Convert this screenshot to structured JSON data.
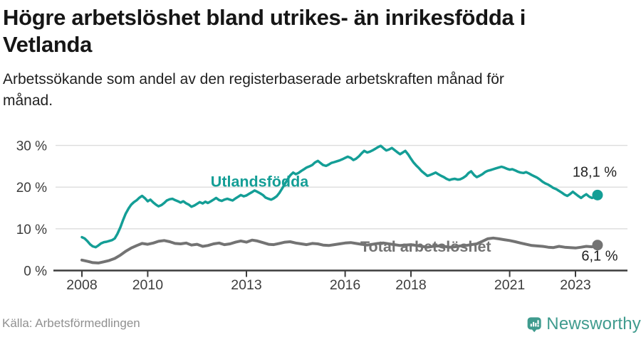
{
  "header": {
    "title": "Högre arbetslöshet bland utrikes- än inrikesfödda i\nVetlanda",
    "subtitle": "Arbetssökande som andel av den registerbaserade arbetskraften månad för\nmånad."
  },
  "footer": {
    "source": "Källa: Arbetsförmedlingen",
    "brand_name": "Newsworthy",
    "brand_color": "#3f9b8e"
  },
  "colors": {
    "teal_series": "#149e96",
    "gray_series": "#737373",
    "gridline": "#dcdcdc",
    "axis": "#3d3d3d",
    "axis_text": "#3d3d3d",
    "end_label_text": "#1f1f1f"
  },
  "chart_data": {
    "type": "line",
    "title": "Högre arbetslöshet bland utrikes- än inrikesfödda i Vetlanda",
    "subtitle": "Arbetssökande som andel av den registerbaserade arbetskraften månad för månad.",
    "xlabel": "",
    "ylabel": "",
    "x_ticks": [
      2008,
      2010,
      2013,
      2016,
      2018,
      2021,
      2023
    ],
    "y_ticks": [
      0,
      10,
      20,
      30
    ],
    "y_tick_suffix": " %",
    "xlim": [
      2007.15,
      2024.55
    ],
    "ylim": [
      0,
      32
    ],
    "grid": "horizontal",
    "legend_position": "inline-labels",
    "series": [
      {
        "id": "utlandsfodda",
        "name": "Utlandsfödda",
        "color": "#149e96",
        "line_width": 3.5,
        "end_label": "18,1 %",
        "end_value": 18.1,
        "label_anchor": {
          "year": 2013.4,
          "value": 21.3
        },
        "end_label_offset": [
          -4,
          -26
        ],
        "points": [
          [
            2008.0,
            8.0
          ],
          [
            2008.08,
            7.7
          ],
          [
            2008.17,
            7.0
          ],
          [
            2008.25,
            6.3
          ],
          [
            2008.33,
            5.8
          ],
          [
            2008.42,
            5.6
          ],
          [
            2008.5,
            6.0
          ],
          [
            2008.58,
            6.5
          ],
          [
            2008.67,
            6.8
          ],
          [
            2008.75,
            6.9
          ],
          [
            2008.83,
            7.1
          ],
          [
            2008.92,
            7.3
          ],
          [
            2009.0,
            7.7
          ],
          [
            2009.08,
            8.8
          ],
          [
            2009.17,
            10.4
          ],
          [
            2009.25,
            12.1
          ],
          [
            2009.33,
            13.6
          ],
          [
            2009.42,
            14.9
          ],
          [
            2009.5,
            15.8
          ],
          [
            2009.58,
            16.4
          ],
          [
            2009.67,
            16.9
          ],
          [
            2009.75,
            17.5
          ],
          [
            2009.83,
            17.9
          ],
          [
            2009.92,
            17.3
          ],
          [
            2010.0,
            16.6
          ],
          [
            2010.08,
            17.0
          ],
          [
            2010.17,
            16.3
          ],
          [
            2010.25,
            15.8
          ],
          [
            2010.33,
            15.4
          ],
          [
            2010.42,
            15.7
          ],
          [
            2010.5,
            16.2
          ],
          [
            2010.58,
            16.8
          ],
          [
            2010.67,
            17.1
          ],
          [
            2010.75,
            17.2
          ],
          [
            2010.83,
            16.9
          ],
          [
            2010.92,
            16.6
          ],
          [
            2011.0,
            16.3
          ],
          [
            2011.08,
            16.6
          ],
          [
            2011.17,
            16.1
          ],
          [
            2011.25,
            15.8
          ],
          [
            2011.33,
            15.3
          ],
          [
            2011.42,
            15.6
          ],
          [
            2011.5,
            16.0
          ],
          [
            2011.58,
            16.4
          ],
          [
            2011.67,
            16.1
          ],
          [
            2011.75,
            16.5
          ],
          [
            2011.83,
            16.2
          ],
          [
            2011.92,
            16.6
          ],
          [
            2012.0,
            17.0
          ],
          [
            2012.08,
            17.4
          ],
          [
            2012.17,
            16.9
          ],
          [
            2012.25,
            16.7
          ],
          [
            2012.33,
            17.0
          ],
          [
            2012.42,
            17.2
          ],
          [
            2012.5,
            17.0
          ],
          [
            2012.58,
            16.8
          ],
          [
            2012.67,
            17.3
          ],
          [
            2012.75,
            17.7
          ],
          [
            2012.83,
            18.1
          ],
          [
            2012.92,
            17.8
          ],
          [
            2013.0,
            18.0
          ],
          [
            2013.08,
            18.4
          ],
          [
            2013.17,
            18.8
          ],
          [
            2013.25,
            19.2
          ],
          [
            2013.33,
            18.9
          ],
          [
            2013.42,
            18.5
          ],
          [
            2013.5,
            18.1
          ],
          [
            2013.58,
            17.5
          ],
          [
            2013.67,
            17.2
          ],
          [
            2013.75,
            17.0
          ],
          [
            2013.83,
            17.3
          ],
          [
            2013.92,
            17.8
          ],
          [
            2014.0,
            18.6
          ],
          [
            2014.08,
            19.6
          ],
          [
            2014.17,
            20.8
          ],
          [
            2014.25,
            21.9
          ],
          [
            2014.33,
            22.8
          ],
          [
            2014.42,
            23.5
          ],
          [
            2014.5,
            23.1
          ],
          [
            2014.58,
            23.4
          ],
          [
            2014.67,
            23.9
          ],
          [
            2014.75,
            24.3
          ],
          [
            2014.83,
            24.7
          ],
          [
            2014.92,
            25.0
          ],
          [
            2015.0,
            25.3
          ],
          [
            2015.08,
            25.9
          ],
          [
            2015.17,
            26.3
          ],
          [
            2015.25,
            25.8
          ],
          [
            2015.33,
            25.3
          ],
          [
            2015.42,
            25.1
          ],
          [
            2015.5,
            25.4
          ],
          [
            2015.58,
            25.8
          ],
          [
            2015.67,
            26.0
          ],
          [
            2015.75,
            26.2
          ],
          [
            2015.83,
            26.4
          ],
          [
            2015.92,
            26.7
          ],
          [
            2016.0,
            27.0
          ],
          [
            2016.08,
            27.3
          ],
          [
            2016.17,
            27.0
          ],
          [
            2016.25,
            26.5
          ],
          [
            2016.33,
            26.8
          ],
          [
            2016.42,
            27.4
          ],
          [
            2016.5,
            28.1
          ],
          [
            2016.58,
            28.7
          ],
          [
            2016.67,
            28.3
          ],
          [
            2016.75,
            28.5
          ],
          [
            2016.83,
            28.8
          ],
          [
            2016.92,
            29.2
          ],
          [
            2017.0,
            29.6
          ],
          [
            2017.08,
            29.9
          ],
          [
            2017.17,
            29.3
          ],
          [
            2017.25,
            28.8
          ],
          [
            2017.33,
            29.0
          ],
          [
            2017.42,
            29.4
          ],
          [
            2017.5,
            28.9
          ],
          [
            2017.58,
            28.4
          ],
          [
            2017.67,
            27.9
          ],
          [
            2017.75,
            28.3
          ],
          [
            2017.83,
            28.7
          ],
          [
            2017.92,
            27.8
          ],
          [
            2018.0,
            26.8
          ],
          [
            2018.08,
            25.9
          ],
          [
            2018.17,
            25.1
          ],
          [
            2018.25,
            24.5
          ],
          [
            2018.33,
            23.8
          ],
          [
            2018.42,
            23.2
          ],
          [
            2018.5,
            22.7
          ],
          [
            2018.58,
            22.9
          ],
          [
            2018.67,
            23.2
          ],
          [
            2018.75,
            23.5
          ],
          [
            2018.83,
            23.1
          ],
          [
            2018.92,
            22.7
          ],
          [
            2019.0,
            22.4
          ],
          [
            2019.08,
            22.0
          ],
          [
            2019.17,
            21.7
          ],
          [
            2019.25,
            21.9
          ],
          [
            2019.33,
            22.0
          ],
          [
            2019.42,
            21.8
          ],
          [
            2019.5,
            21.9
          ],
          [
            2019.58,
            22.2
          ],
          [
            2019.67,
            22.7
          ],
          [
            2019.75,
            23.4
          ],
          [
            2019.83,
            23.8
          ],
          [
            2019.92,
            22.9
          ],
          [
            2020.0,
            22.4
          ],
          [
            2020.08,
            22.7
          ],
          [
            2020.17,
            23.1
          ],
          [
            2020.25,
            23.6
          ],
          [
            2020.33,
            23.9
          ],
          [
            2020.42,
            24.1
          ],
          [
            2020.5,
            24.3
          ],
          [
            2020.58,
            24.5
          ],
          [
            2020.67,
            24.7
          ],
          [
            2020.75,
            24.9
          ],
          [
            2020.83,
            24.7
          ],
          [
            2020.92,
            24.4
          ],
          [
            2021.0,
            24.2
          ],
          [
            2021.08,
            24.3
          ],
          [
            2021.17,
            24.0
          ],
          [
            2021.25,
            23.7
          ],
          [
            2021.33,
            23.5
          ],
          [
            2021.42,
            23.4
          ],
          [
            2021.5,
            23.6
          ],
          [
            2021.58,
            23.3
          ],
          [
            2021.67,
            22.9
          ],
          [
            2021.75,
            22.6
          ],
          [
            2021.83,
            22.3
          ],
          [
            2021.92,
            21.8
          ],
          [
            2022.0,
            21.3
          ],
          [
            2022.08,
            20.9
          ],
          [
            2022.17,
            20.6
          ],
          [
            2022.25,
            20.2
          ],
          [
            2022.33,
            19.8
          ],
          [
            2022.42,
            19.5
          ],
          [
            2022.5,
            19.1
          ],
          [
            2022.58,
            18.7
          ],
          [
            2022.67,
            18.2
          ],
          [
            2022.75,
            17.9
          ],
          [
            2022.83,
            18.3
          ],
          [
            2022.92,
            18.9
          ],
          [
            2023.0,
            18.4
          ],
          [
            2023.08,
            17.9
          ],
          [
            2023.17,
            17.4
          ],
          [
            2023.25,
            17.9
          ],
          [
            2023.33,
            18.3
          ],
          [
            2023.42,
            17.7
          ],
          [
            2023.5,
            17.4
          ],
          [
            2023.58,
            17.6
          ],
          [
            2023.67,
            18.1
          ]
        ]
      },
      {
        "id": "total",
        "name": "Total arbetslöshet",
        "color": "#737373",
        "line_width": 4,
        "end_label": "6,1 %",
        "end_value": 6.1,
        "label_anchor": {
          "year": 2018.45,
          "value": 5.7
        },
        "end_label_offset": [
          3,
          22
        ],
        "points": [
          [
            2008.0,
            2.5
          ],
          [
            2008.17,
            2.2
          ],
          [
            2008.33,
            1.9
          ],
          [
            2008.5,
            1.8
          ],
          [
            2008.67,
            2.1
          ],
          [
            2008.83,
            2.4
          ],
          [
            2009.0,
            2.9
          ],
          [
            2009.17,
            3.7
          ],
          [
            2009.33,
            4.6
          ],
          [
            2009.5,
            5.4
          ],
          [
            2009.67,
            6.0
          ],
          [
            2009.83,
            6.5
          ],
          [
            2010.0,
            6.3
          ],
          [
            2010.17,
            6.6
          ],
          [
            2010.33,
            7.0
          ],
          [
            2010.5,
            7.2
          ],
          [
            2010.67,
            6.9
          ],
          [
            2010.83,
            6.5
          ],
          [
            2011.0,
            6.4
          ],
          [
            2011.17,
            6.6
          ],
          [
            2011.33,
            6.1
          ],
          [
            2011.5,
            6.3
          ],
          [
            2011.67,
            5.8
          ],
          [
            2011.83,
            6.0
          ],
          [
            2012.0,
            6.4
          ],
          [
            2012.17,
            6.6
          ],
          [
            2012.33,
            6.2
          ],
          [
            2012.5,
            6.4
          ],
          [
            2012.67,
            6.8
          ],
          [
            2012.83,
            7.1
          ],
          [
            2013.0,
            6.8
          ],
          [
            2013.17,
            7.3
          ],
          [
            2013.33,
            7.1
          ],
          [
            2013.5,
            6.7
          ],
          [
            2013.67,
            6.3
          ],
          [
            2013.83,
            6.2
          ],
          [
            2014.0,
            6.5
          ],
          [
            2014.17,
            6.8
          ],
          [
            2014.33,
            6.9
          ],
          [
            2014.5,
            6.6
          ],
          [
            2014.67,
            6.4
          ],
          [
            2014.83,
            6.2
          ],
          [
            2015.0,
            6.5
          ],
          [
            2015.17,
            6.4
          ],
          [
            2015.33,
            6.1
          ],
          [
            2015.5,
            6.0
          ],
          [
            2015.67,
            6.2
          ],
          [
            2015.83,
            6.4
          ],
          [
            2016.0,
            6.6
          ],
          [
            2016.17,
            6.7
          ],
          [
            2016.33,
            6.5
          ],
          [
            2016.5,
            6.3
          ],
          [
            2016.67,
            6.1
          ],
          [
            2016.83,
            6.3
          ],
          [
            2017.0,
            6.5
          ],
          [
            2017.17,
            6.6
          ],
          [
            2017.33,
            6.4
          ],
          [
            2017.5,
            6.2
          ],
          [
            2017.67,
            6.0
          ],
          [
            2017.83,
            6.1
          ],
          [
            2018.0,
            6.2
          ],
          [
            2018.17,
            6.0
          ],
          [
            2018.33,
            5.8
          ],
          [
            2018.5,
            5.6
          ],
          [
            2018.67,
            5.8
          ],
          [
            2018.83,
            5.9
          ],
          [
            2019.0,
            5.8
          ],
          [
            2019.17,
            5.6
          ],
          [
            2019.33,
            5.7
          ],
          [
            2019.5,
            5.9
          ],
          [
            2019.67,
            6.0
          ],
          [
            2019.83,
            6.2
          ],
          [
            2020.0,
            6.4
          ],
          [
            2020.17,
            7.0
          ],
          [
            2020.33,
            7.6
          ],
          [
            2020.5,
            7.8
          ],
          [
            2020.67,
            7.6
          ],
          [
            2020.83,
            7.4
          ],
          [
            2021.0,
            7.2
          ],
          [
            2021.17,
            6.9
          ],
          [
            2021.33,
            6.6
          ],
          [
            2021.5,
            6.3
          ],
          [
            2021.67,
            6.0
          ],
          [
            2021.83,
            5.9
          ],
          [
            2022.0,
            5.8
          ],
          [
            2022.17,
            5.6
          ],
          [
            2022.33,
            5.5
          ],
          [
            2022.5,
            5.8
          ],
          [
            2022.67,
            5.6
          ],
          [
            2022.83,
            5.5
          ],
          [
            2023.0,
            5.4
          ],
          [
            2023.17,
            5.6
          ],
          [
            2023.33,
            5.8
          ],
          [
            2023.5,
            5.7
          ],
          [
            2023.58,
            5.8
          ],
          [
            2023.67,
            6.1
          ]
        ]
      }
    ]
  }
}
